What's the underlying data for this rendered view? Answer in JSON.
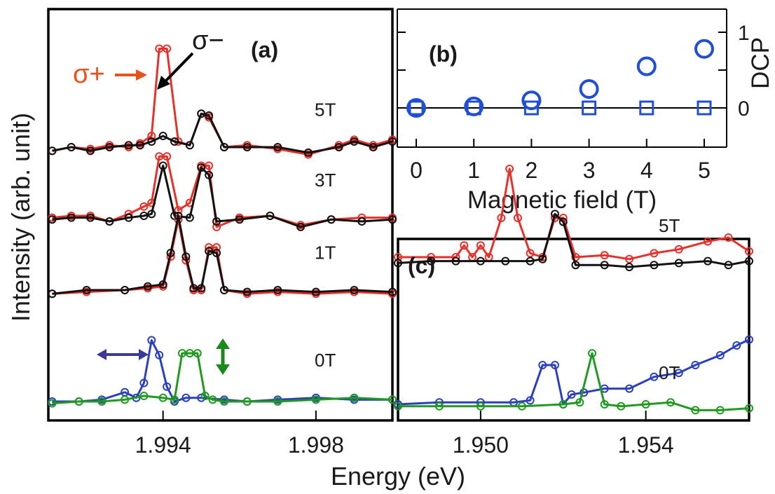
{
  "figure": {
    "ylabel": "Intensity (arb. unit)",
    "xlabel": "Energy (eV)",
    "colors": {
      "sigma_plus": "#e8302a",
      "sigma_minus": "#111111",
      "horizontal": "#2a3fbf",
      "vertical": "#1f9a1f",
      "dcp": "#1f4fd8",
      "annot_blue": "#3b3a9a",
      "annot_green": "#1a8a1a"
    }
  },
  "chart_data": [
    {
      "id": "a",
      "type": "line",
      "panel_label": "(a)",
      "xlim": [
        1.991,
        2.0
      ],
      "xticks": [
        1.994,
        1.998
      ],
      "xtick_labels": [
        "1.994",
        "1.998"
      ],
      "annotations": {
        "sigma_minus": "σ−",
        "sigma_plus": "σ+"
      },
      "traces": [
        {
          "field_label": "5T",
          "offset": 1.35,
          "series": [
            {
              "key": "sigma_plus",
              "color": "#e8302a",
              "x": [
                1.9911,
                1.9916,
                1.9921,
                1.9926,
                1.9931,
                1.9934,
                1.9937,
                1.9939,
                1.9941,
                1.9944,
                1.9947,
                1.995,
                1.9952,
                1.9956,
                1.9962,
                1.997,
                1.9978,
                1.9986,
                1.999,
                1.9995,
                2.0
              ],
              "y": [
                0.0,
                0.02,
                0.01,
                0.03,
                0.02,
                0.04,
                0.08,
                0.55,
                0.55,
                0.05,
                0.03,
                0.2,
                0.18,
                0.02,
                0.03,
                0.01,
                -0.02,
                0.03,
                0.06,
                0.03,
                0.06
              ]
            },
            {
              "key": "sigma_minus",
              "color": "#111111",
              "x": [
                1.9911,
                1.9916,
                1.9921,
                1.9926,
                1.9931,
                1.9934,
                1.9937,
                1.994,
                1.9943,
                1.9947,
                1.995,
                1.9952,
                1.9956,
                1.9962,
                1.997,
                1.9978,
                1.9986,
                1.999,
                1.9995,
                2.0
              ],
              "y": [
                0.0,
                0.02,
                0.0,
                0.02,
                0.03,
                0.03,
                0.05,
                0.08,
                0.05,
                0.03,
                0.2,
                0.19,
                0.02,
                0.02,
                0.02,
                -0.01,
                0.02,
                0.05,
                0.02,
                0.05
              ]
            }
          ]
        },
        {
          "field_label": "3T",
          "offset": 0.97,
          "series": [
            {
              "key": "sigma_plus",
              "color": "#e8302a",
              "x": [
                1.9911,
                1.9916,
                1.9921,
                1.9926,
                1.9931,
                1.9935,
                1.9937,
                1.9939,
                1.9941,
                1.9944,
                1.9947,
                1.995,
                1.9952,
                1.9954,
                1.996,
                1.9968,
                1.9976,
                1.9984,
                1.9992,
                2.0
              ],
              "y": [
                0.02,
                0.03,
                0.03,
                0.0,
                0.04,
                0.08,
                0.1,
                0.35,
                0.35,
                0.06,
                0.1,
                0.3,
                0.3,
                -0.03,
                0.02,
                0.03,
                -0.02,
                0.01,
                0.02,
                0.02
              ]
            },
            {
              "key": "sigma_minus",
              "color": "#111111",
              "x": [
                1.9911,
                1.9916,
                1.9921,
                1.9926,
                1.9931,
                1.9935,
                1.9937,
                1.994,
                1.9943,
                1.9947,
                1.995,
                1.9952,
                1.9954,
                1.996,
                1.9968,
                1.9976,
                1.9984,
                1.9992,
                2.0
              ],
              "y": [
                0.01,
                0.02,
                0.02,
                0.0,
                0.02,
                0.03,
                0.04,
                0.3,
                0.03,
                0.02,
                0.29,
                0.25,
                0.0,
                0.01,
                0.03,
                -0.03,
                0.01,
                0.0,
                0.01
              ]
            }
          ]
        },
        {
          "field_label": "1T",
          "offset": 0.58,
          "series": [
            {
              "key": "sigma_plus",
              "color": "#e8302a",
              "x": [
                1.9911,
                1.992,
                1.993,
                1.9936,
                1.994,
                1.9942,
                1.9944,
                1.9946,
                1.9948,
                1.995,
                1.9952,
                1.9954,
                1.9956,
                1.9962,
                1.997,
                1.998,
                1.999,
                2.0
              ],
              "y": [
                0.0,
                0.01,
                0.02,
                0.03,
                0.04,
                0.2,
                0.4,
                0.18,
                0.02,
                0.02,
                0.25,
                0.25,
                0.02,
                0.0,
                0.01,
                0.0,
                0.01,
                0.0
              ]
            },
            {
              "key": "sigma_minus",
              "color": "#111111",
              "x": [
                1.9911,
                1.992,
                1.993,
                1.9936,
                1.994,
                1.9942,
                1.9944,
                1.9946,
                1.9948,
                1.995,
                1.9952,
                1.9954,
                1.9956,
                1.9962,
                1.997,
                1.998,
                1.999,
                2.0
              ],
              "y": [
                0.0,
                0.02,
                0.02,
                0.04,
                0.05,
                0.22,
                0.42,
                0.2,
                0.03,
                0.03,
                0.23,
                0.22,
                0.02,
                0.01,
                0.02,
                0.01,
                0.02,
                0.01
              ]
            }
          ]
        },
        {
          "field_label": "0T",
          "offset": 0.0,
          "series": [
            {
              "key": "horizontal",
              "color": "#2a3fbf",
              "x": [
                1.9911,
                1.9918,
                1.9924,
                1.993,
                1.9933,
                1.9935,
                1.9937,
                1.9939,
                1.9941,
                1.9943,
                1.9946,
                1.995,
                1.9956,
                1.9962,
                1.997,
                1.998,
                1.999,
                2.0
              ],
              "y": [
                0.0,
                0.0,
                0.01,
                0.05,
                0.02,
                0.1,
                0.33,
                0.25,
                0.08,
                0.0,
                0.02,
                0.02,
                0.01,
                0.0,
                0.01,
                0.02,
                0.01,
                0.01
              ]
            },
            {
              "key": "vertical",
              "color": "#1f9a1f",
              "x": [
                1.9911,
                1.9918,
                1.9924,
                1.993,
                1.9935,
                1.994,
                1.9943,
                1.9945,
                1.9947,
                1.9949,
                1.9951,
                1.9953,
                1.9956,
                1.9962,
                1.997,
                1.998,
                1.999,
                2.0
              ],
              "y": [
                -0.01,
                0.0,
                0.0,
                0.01,
                0.03,
                0.02,
                0.01,
                0.26,
                0.26,
                0.26,
                0.03,
                0.01,
                0.0,
                0.0,
                0.0,
                0.01,
                0.02,
                0.01
              ]
            }
          ]
        }
      ]
    },
    {
      "id": "b",
      "type": "scatter",
      "panel_label": "(b)",
      "xlabel": "Magnetic field (T)",
      "ylabel": "DCP",
      "xlim": [
        -0.2,
        5.4
      ],
      "ylim": [
        -0.6,
        1.05
      ],
      "xticks": [
        0,
        1,
        2,
        3,
        4,
        5
      ],
      "yticks": [
        0,
        1
      ],
      "series": [
        {
          "key": "circle",
          "marker": "circle",
          "x": [
            0,
            1,
            2,
            3,
            4,
            5
          ],
          "y": [
            0.0,
            0.02,
            0.1,
            0.25,
            0.55,
            0.78
          ]
        },
        {
          "key": "square",
          "marker": "square",
          "x": [
            0,
            1,
            2,
            3,
            4,
            5
          ],
          "y": [
            0.0,
            0.0,
            0.0,
            0.0,
            0.0,
            0.0
          ]
        }
      ]
    },
    {
      "id": "c",
      "type": "line",
      "panel_label": "(c)",
      "xlim": [
        1.948,
        1.9565
      ],
      "xticks": [
        1.95,
        1.954
      ],
      "xtick_labels": [
        "1.950",
        "1.954"
      ],
      "traces": [
        {
          "field_label": "5T",
          "offset": 0.75,
          "series": [
            {
              "key": "sigma_plus",
              "color": "#e8302a",
              "x": [
                1.948,
                1.9488,
                1.9494,
                1.9496,
                1.9498,
                1.95,
                1.9502,
                1.9505,
                1.9507,
                1.9509,
                1.9512,
                1.9515,
                1.9518,
                1.952,
                1.9523,
                1.953,
                1.9536,
                1.9542,
                1.9548,
                1.9555,
                1.956,
                1.9565
              ],
              "y": [
                0.0,
                0.0,
                0.0,
                0.06,
                0.0,
                0.06,
                0.0,
                0.2,
                0.45,
                0.2,
                0.02,
                0.0,
                0.2,
                0.2,
                0.0,
                0.01,
                -0.01,
                0.02,
                0.04,
                0.08,
                0.1,
                0.03
              ]
            },
            {
              "key": "sigma_minus",
              "color": "#111111",
              "x": [
                1.948,
                1.9488,
                1.9494,
                1.95,
                1.9506,
                1.9512,
                1.9515,
                1.9518,
                1.952,
                1.9523,
                1.953,
                1.9536,
                1.9542,
                1.9548,
                1.9555,
                1.956,
                1.9565
              ],
              "y": [
                -0.03,
                -0.02,
                -0.02,
                -0.02,
                -0.02,
                -0.02,
                -0.01,
                0.22,
                0.18,
                -0.04,
                -0.04,
                -0.05,
                -0.04,
                -0.03,
                -0.02,
                -0.04,
                -0.02
              ]
            }
          ]
        },
        {
          "field_label": "0T",
          "offset": 0.0,
          "series": [
            {
              "key": "horizontal",
              "color": "#2a3fbf",
              "x": [
                1.948,
                1.949,
                1.95,
                1.9508,
                1.9512,
                1.9515,
                1.9518,
                1.952,
                1.9522,
                1.9525,
                1.953,
                1.9536,
                1.9542,
                1.9548,
                1.9552,
                1.9558,
                1.9562,
                1.9565
              ],
              "y": [
                0.0,
                0.01,
                0.01,
                0.01,
                0.02,
                0.2,
                0.2,
                0.0,
                0.05,
                0.06,
                0.08,
                0.08,
                0.14,
                0.16,
                0.2,
                0.25,
                0.3,
                0.33
              ]
            },
            {
              "key": "vertical",
              "color": "#1f9a1f",
              "x": [
                1.948,
                1.949,
                1.95,
                1.951,
                1.952,
                1.9524,
                1.9527,
                1.953,
                1.9534,
                1.954,
                1.9546,
                1.9552,
                1.9558,
                1.9565
              ],
              "y": [
                -0.01,
                -0.01,
                -0.01,
                -0.01,
                0.0,
                0.01,
                0.26,
                0.0,
                -0.01,
                0.0,
                0.01,
                -0.03,
                -0.03,
                -0.02
              ]
            }
          ]
        }
      ]
    }
  ]
}
